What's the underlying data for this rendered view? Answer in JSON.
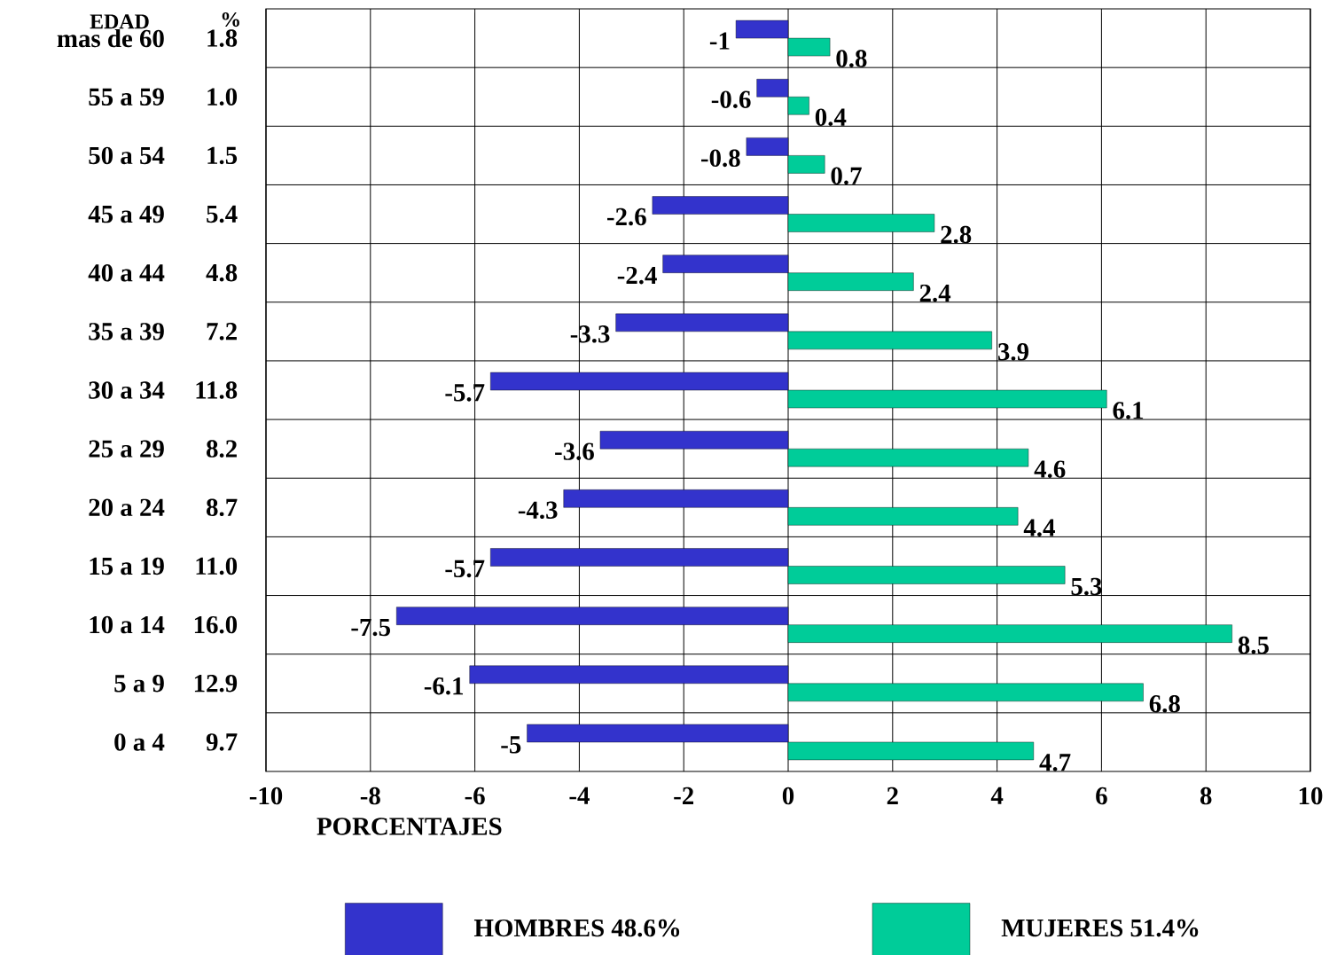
{
  "chart_data": {
    "type": "bar",
    "orientation": "horizontal",
    "categories": [
      "mas de 60",
      "55 a 59",
      "50 a 54",
      "45 a 49",
      "40 a 44",
      "35 a 39",
      "30 a 34",
      "25 a 29",
      "20 a 24",
      "15 a 19",
      "10 a 14",
      "5 a 9",
      "0 a 4"
    ],
    "series": [
      {
        "name": "HOMBRES 48.6%",
        "color": "#3333cc",
        "values": [
          -1,
          -0.6,
          -0.8,
          -2.6,
          -2.4,
          -3.3,
          -5.7,
          -3.6,
          -4.3,
          -5.7,
          -7.5,
          -6.1,
          -5
        ]
      },
      {
        "name": "MUJERES  51.4%",
        "color": "#00cc99",
        "values": [
          0.8,
          0.4,
          0.7,
          2.8,
          2.4,
          3.9,
          6.1,
          4.6,
          4.4,
          5.3,
          8.5,
          6.8,
          4.7
        ]
      }
    ],
    "xlim": [
      -10,
      10
    ],
    "xticks": [
      -10,
      -8,
      -6,
      -4,
      -2,
      0,
      2,
      4,
      6,
      8,
      10
    ],
    "xlabel": "PORCENTAJES",
    "ylabel": "EDAD",
    "annotations": [
      "%",
      "1.8",
      "1.0",
      "1.5",
      "5.4",
      "4.8",
      "7.2",
      "11.8",
      "8.2",
      "8.7",
      "11.0",
      "16.0",
      "12.9",
      "9.7"
    ],
    "data_labels": true,
    "grid": true,
    "legend": "bottom"
  }
}
